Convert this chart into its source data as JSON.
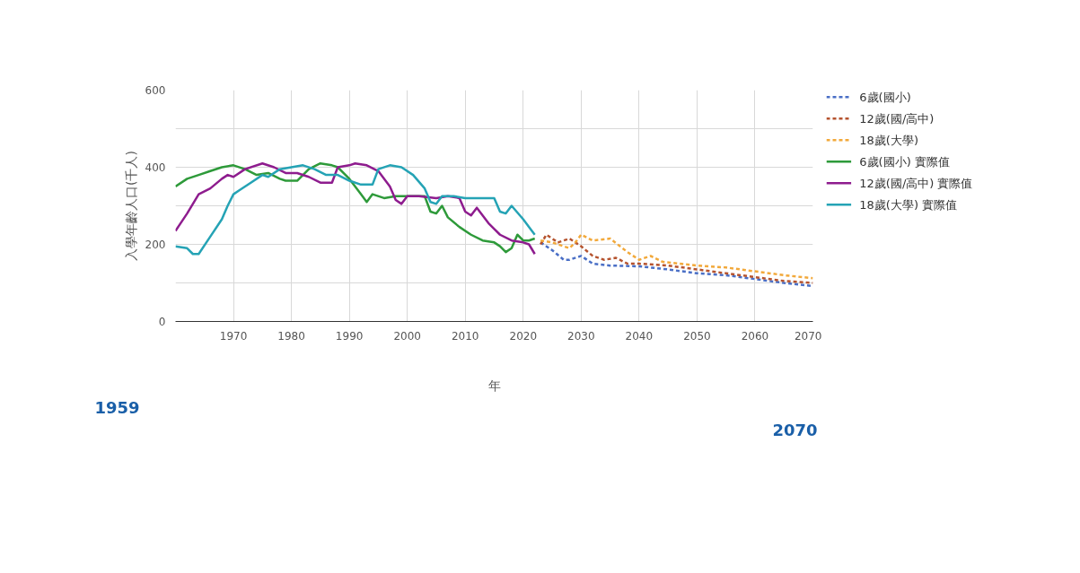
{
  "chart_data": {
    "type": "line",
    "xlabel": "年",
    "ylabel": "入學年齡人口(千人)",
    "xlim": [
      1960,
      2070
    ],
    "xticks": [
      1970,
      1980,
      1990,
      2000,
      2010,
      2020,
      2030,
      2040,
      2050,
      2060,
      2070
    ],
    "ylim": [
      0,
      600
    ],
    "yticks": [
      0,
      {
        "value": 100,
        "label": null
      },
      200,
      {
        "value": 300,
        "label": null
      },
      400,
      {
        "value": 500,
        "label": null
      },
      600
    ],
    "grid": true,
    "legend": "right",
    "annotations": [
      "1959",
      "2070"
    ],
    "series": [
      {
        "name": "6歲(國小)",
        "color": "#4a6fc6",
        "line_style": "dashed",
        "x": [
          2023,
          2025,
          2027,
          2028,
          2030,
          2032,
          2035,
          2040,
          2045,
          2050,
          2055,
          2060,
          2065,
          2070
        ],
        "values": [
          205,
          185,
          160,
          160,
          170,
          150,
          145,
          143,
          135,
          125,
          120,
          110,
          100,
          92
        ]
      },
      {
        "name": "12歲(國/高中)",
        "color": "#b5532e",
        "line_style": "dashed",
        "x": [
          2023,
          2024,
          2026,
          2028,
          2030,
          2032,
          2034,
          2036,
          2038,
          2040,
          2045,
          2050,
          2055,
          2060,
          2065,
          2070
        ],
        "values": [
          200,
          225,
          205,
          215,
          195,
          170,
          160,
          165,
          150,
          150,
          145,
          135,
          125,
          115,
          105,
          100
        ]
      },
      {
        "name": "18歲(大學)",
        "color": "#f2a93b",
        "line_style": "dashed",
        "x": [
          2023,
          2025,
          2027,
          2028,
          2029,
          2030,
          2032,
          2035,
          2038,
          2040,
          2042,
          2044,
          2050,
          2055,
          2060,
          2065,
          2070
        ],
        "values": [
          210,
          205,
          195,
          190,
          205,
          225,
          210,
          215,
          180,
          160,
          170,
          155,
          145,
          140,
          130,
          120,
          112
        ]
      },
      {
        "name": "6歲(國小) 實際值",
        "color": "#2e9a3a",
        "line_style": "solid",
        "x": [
          1960,
          1962,
          1964,
          1966,
          1968,
          1970,
          1972,
          1974,
          1976,
          1978,
          1979,
          1981,
          1983,
          1985,
          1987,
          1988,
          1990,
          1992,
          1993,
          1994,
          1996,
          1998,
          2000,
          2003,
          2004,
          2005,
          2006,
          2007,
          2009,
          2011,
          2013,
          2015,
          2016,
          2017,
          2018,
          2019,
          2020,
          2021,
          2022
        ],
        "values": [
          350,
          370,
          380,
          390,
          400,
          405,
          395,
          380,
          385,
          370,
          365,
          365,
          395,
          410,
          405,
          400,
          370,
          330,
          310,
          330,
          320,
          325,
          325,
          325,
          285,
          280,
          300,
          270,
          245,
          225,
          210,
          205,
          195,
          180,
          190,
          225,
          210,
          210,
          215
        ]
      },
      {
        "name": "12歲(國/高中) 實際值",
        "color": "#8e1c8e",
        "line_style": "solid",
        "x": [
          1960,
          1962,
          1964,
          1966,
          1968,
          1969,
          1970,
          1972,
          1975,
          1977,
          1979,
          1981,
          1983,
          1985,
          1987,
          1988,
          1990,
          1991,
          1993,
          1995,
          1997,
          1998,
          1999,
          2000,
          2002,
          2005,
          2007,
          2009,
          2010,
          2011,
          2012,
          2014,
          2016,
          2018,
          2020,
          2021,
          2022
        ],
        "values": [
          235,
          280,
          330,
          345,
          370,
          380,
          375,
          395,
          410,
          400,
          385,
          385,
          375,
          360,
          360,
          400,
          405,
          410,
          405,
          390,
          350,
          315,
          305,
          325,
          325,
          320,
          325,
          320,
          285,
          275,
          295,
          255,
          225,
          210,
          205,
          200,
          175
        ]
      },
      {
        "name": "18歲(大學) 實際值",
        "color": "#25a3b5",
        "line_style": "solid",
        "x": [
          1960,
          1962,
          1963,
          1964,
          1966,
          1968,
          1969,
          1970,
          1971,
          1973,
          1975,
          1976,
          1978,
          1980,
          1982,
          1984,
          1986,
          1988,
          1990,
          1992,
          1994,
          1995,
          1997,
          1999,
          2001,
          2003,
          2004,
          2005,
          2006,
          2008,
          2010,
          2012,
          2015,
          2016,
          2017,
          2018,
          2020,
          2022
        ],
        "values": [
          195,
          190,
          175,
          175,
          220,
          265,
          300,
          330,
          340,
          360,
          380,
          375,
          395,
          400,
          405,
          395,
          380,
          380,
          365,
          355,
          355,
          395,
          405,
          400,
          380,
          345,
          310,
          305,
          325,
          325,
          320,
          320,
          320,
          285,
          280,
          300,
          265,
          225
        ]
      }
    ]
  }
}
